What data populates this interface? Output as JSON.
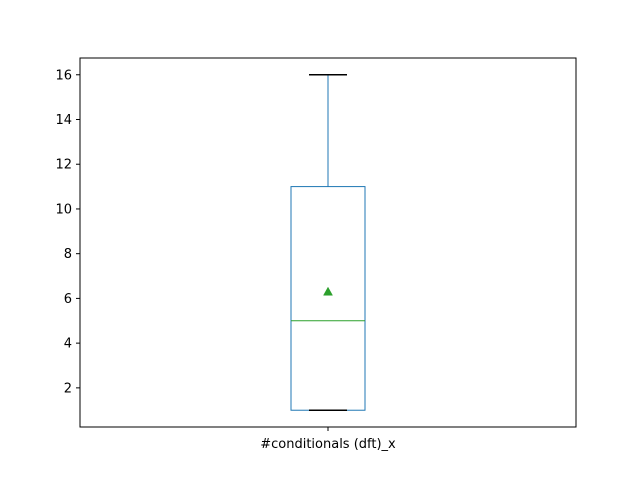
{
  "chart_data": {
    "type": "box",
    "categories": [
      "#conditionals (dft)_x"
    ],
    "boxes": [
      {
        "name": "#conditionals (dft)_x",
        "whisker_low": 1,
        "q1": 1,
        "median": 5,
        "mean": 6.3,
        "q3": 11,
        "whisker_high": 16
      }
    ],
    "ylim": [
      0.25,
      16.75
    ],
    "yticks": [
      2,
      4,
      6,
      8,
      10,
      12,
      14,
      16
    ],
    "grid": false,
    "title": "",
    "xlabel": "",
    "ylabel": ""
  },
  "colors": {
    "box": "#1f77b4",
    "median": "#2ca02c",
    "mean_marker": "#2ca02c",
    "caps": "#000000",
    "axes": "#000000"
  }
}
